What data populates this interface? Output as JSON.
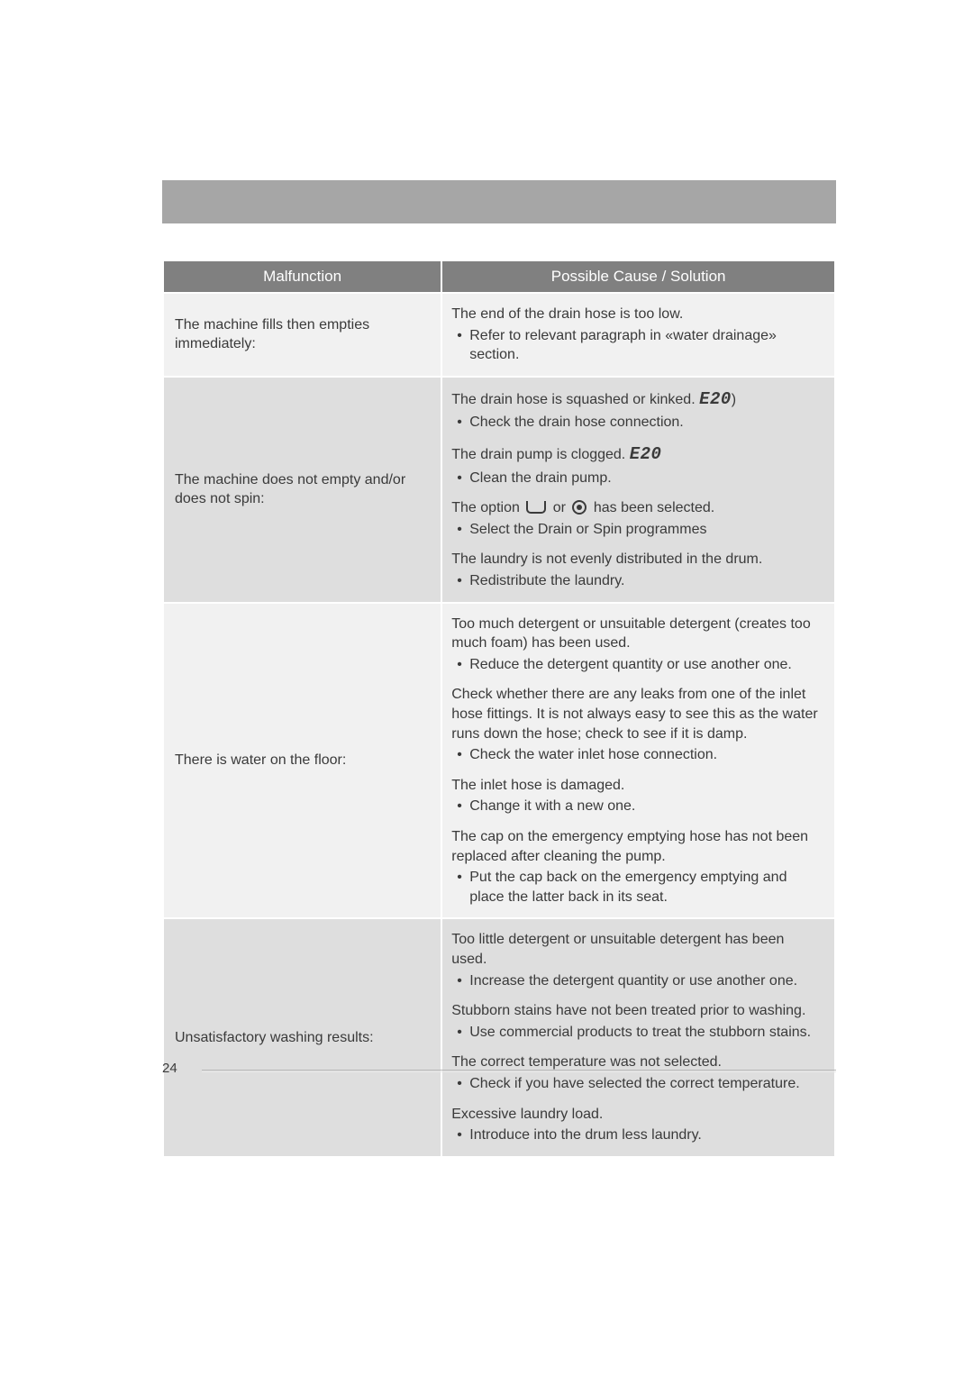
{
  "page": {
    "number": "24",
    "bar_color": "#a6a6a6",
    "bg_alt1": "#f1f1f1",
    "bg_alt2": "#dedede",
    "header_bg": "#808080",
    "text_color": "#3a3a3a"
  },
  "columns": {
    "malfunction": "Malfunction",
    "solution": "Possible Cause / Solution"
  },
  "rows": [
    {
      "malfunction": "The machine fills then empties immediately:",
      "causes": [
        {
          "text": "The end of the drain hose is too low.",
          "fixes": [
            "Refer to relevant paragraph in «water drainage» section."
          ]
        }
      ]
    },
    {
      "malfunction": "The machine does not empty and/or does not spin:",
      "causes": [
        {
          "prefix": "The drain hose is squashed or kinked. ",
          "code": "E20",
          "suffix": ")",
          "fixes": [
            "Check the drain hose connection."
          ]
        },
        {
          "prefix": "The drain pump is clogged. ",
          "code": "E20",
          "suffix": "",
          "fixes": [
            "Clean the drain pump."
          ]
        },
        {
          "option_line": true,
          "before": "The option ",
          "middle": " or ",
          "after": " has been selected.",
          "fixes": [
            "Select the Drain or Spin programmes"
          ]
        },
        {
          "text": "The laundry is not evenly distributed in the drum.",
          "fixes": [
            "Redistribute the laundry."
          ]
        }
      ]
    },
    {
      "malfunction": "There is water on the floor:",
      "causes": [
        {
          "text": "Too much detergent or unsuitable detergent (creates too much foam) has been used.",
          "fixes": [
            "Reduce the detergent quantity or use another one."
          ]
        },
        {
          "text": "Check whether there are any leaks from one of the inlet hose fittings. It is not always easy to see this as the water runs down the hose; check to see if it is damp.",
          "fixes": [
            "Check the water inlet hose connection."
          ]
        },
        {
          "text": "The inlet hose is damaged.",
          "fixes": [
            "Change it with a new one."
          ]
        },
        {
          "text": "The cap on the emergency emptying hose has not been replaced after cleaning the pump.",
          "fixes": [
            " Put the cap back on the emergency emptying and place the latter back in its seat."
          ]
        }
      ]
    },
    {
      "malfunction": "Unsatisfactory washing results:",
      "causes": [
        {
          "text": "Too little detergent or unsuitable detergent has been used.",
          "fixes": [
            "Increase the detergent quantity or use another one."
          ]
        },
        {
          "text": "Stubborn stains have not been treated prior to washing.",
          "fixes": [
            "Use commercial products to treat the stubborn stains."
          ]
        },
        {
          "text": "The correct temperature was not selected.",
          "fixes": [
            "Check if you have selected the correct temperature."
          ]
        },
        {
          "text": "Excessive laundry load.",
          "fixes": [
            "Introduce into the drum less laundry."
          ]
        }
      ]
    }
  ]
}
